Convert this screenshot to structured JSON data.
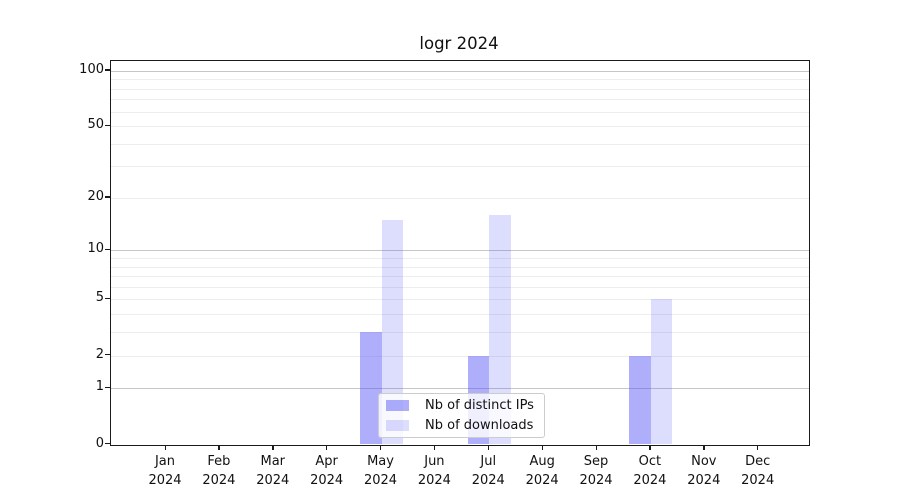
{
  "title": "logr 2024",
  "chart_data": {
    "type": "bar",
    "title": "logr 2024",
    "categories": [
      "Jan",
      "Feb",
      "Mar",
      "Apr",
      "May",
      "Jun",
      "Jul",
      "Aug",
      "Sep",
      "Oct",
      "Nov",
      "Dec"
    ],
    "year_label": "2024",
    "series": [
      {
        "name": "Nb of distinct IPs",
        "color": "rgba(85,85,245,0.48)",
        "color_hex_on_white": "#ababfa",
        "values": [
          0,
          0,
          0,
          0,
          3,
          0,
          2,
          0,
          0,
          2,
          0,
          0
        ]
      },
      {
        "name": "Nb of downloads",
        "color": "rgba(85,85,245,0.20)",
        "color_hex_on_white": "#dbdbfa",
        "values": [
          0,
          0,
          0,
          0,
          15,
          0,
          16,
          0,
          0,
          5,
          0,
          0
        ]
      }
    ],
    "yscale": "log1p",
    "ylim": [
      0,
      113
    ],
    "yticks": [
      0,
      1,
      2,
      5,
      10,
      20,
      50,
      100
    ],
    "major_gridlines": [
      1,
      10,
      100
    ],
    "minor_gridlines": [
      2,
      3,
      4,
      5,
      6,
      7,
      8,
      9,
      20,
      30,
      40,
      50,
      60,
      70,
      80,
      90
    ],
    "grid": true,
    "legend_position": "lower center inside",
    "xlabel": "",
    "ylabel": ""
  },
  "colors": {
    "spine": "#1a1a1a",
    "major_grid": "#c6c6c6",
    "minor_grid": "#ededed",
    "legend_border": "#cccccc",
    "text": "#111111",
    "background": "#ffffff"
  }
}
